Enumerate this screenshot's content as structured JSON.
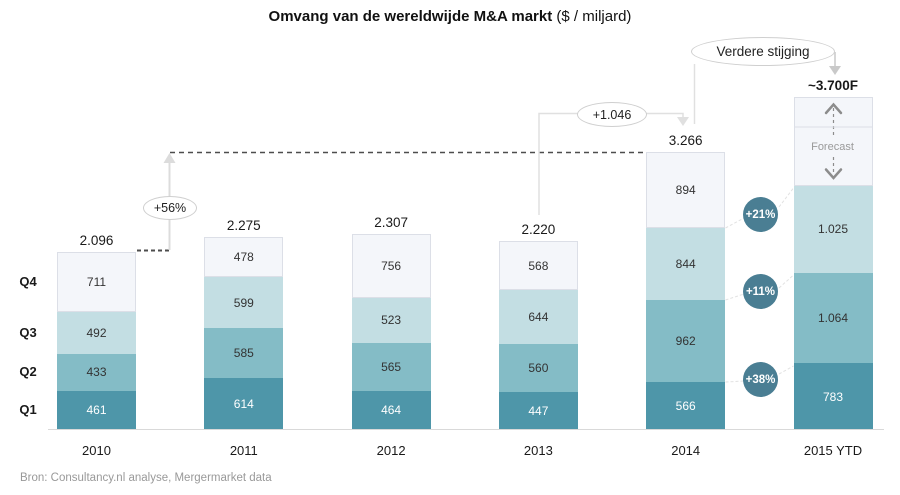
{
  "title": {
    "main": "Omvang van de wereldwijde M&A markt",
    "suffix": " ($ / miljard)"
  },
  "source_note": "Bron: Consultancy.nl analyse, Mergermarket data",
  "quarter_axis_labels": [
    "Q4",
    "Q3",
    "Q2",
    "Q1"
  ],
  "annotations": {
    "growth_2010_2014": "+56%",
    "increase_2013_2014": "+1.046",
    "further_increase_callout": "Verdere stijging",
    "forecast_label": "Forecast",
    "yoy_quarter_growth": [
      "+21%",
      "+11%",
      "+38%"
    ]
  },
  "colors": {
    "q1": "#4e96a9",
    "q2": "#84bcc6",
    "q3": "#c3dee3",
    "q4": "#f4f6fa",
    "q4_border": "#dcdfe7",
    "badge": "#4a7e93"
  },
  "chart_data": {
    "type": "bar",
    "stacked": true,
    "title": "Omvang van de wereldwijde M&A markt ($ / miljard)",
    "unit": "$ miljard",
    "categories": [
      "2010",
      "2011",
      "2012",
      "2013",
      "2014",
      "2015 YTD"
    ],
    "series": [
      {
        "name": "Q1",
        "values": [
          461,
          614,
          464,
          447,
          566,
          783
        ],
        "labels": [
          "461",
          "614",
          "464",
          "447",
          "566",
          "783"
        ]
      },
      {
        "name": "Q2",
        "values": [
          433,
          585,
          565,
          560,
          962,
          1064
        ],
        "labels": [
          "433",
          "585",
          "565",
          "560",
          "962",
          "1.064"
        ]
      },
      {
        "name": "Q3",
        "values": [
          492,
          599,
          523,
          644,
          844,
          1025
        ],
        "labels": [
          "492",
          "599",
          "523",
          "644",
          "844",
          "1.025"
        ]
      },
      {
        "name": "Q4",
        "values": [
          711,
          478,
          756,
          568,
          894,
          null
        ],
        "labels": [
          "711",
          "478",
          "756",
          "568",
          "894",
          ""
        ]
      }
    ],
    "totals": [
      2096,
      2275,
      2307,
      2220,
      3266,
      null
    ],
    "total_labels": [
      "2.096",
      "2.275",
      "2.307",
      "2.220",
      "3.266",
      "~3.700F"
    ],
    "forecast": {
      "category": "2015 YTD",
      "value": 3700,
      "display": "~3.700F",
      "note": "Forecast"
    },
    "yoy_growth_2015_vs_2014": {
      "Q3": "+21%",
      "Q2": "+11%",
      "Q1": "+38%"
    },
    "legend_position": "none",
    "grid": false,
    "ylim": [
      0,
      3900
    ]
  }
}
